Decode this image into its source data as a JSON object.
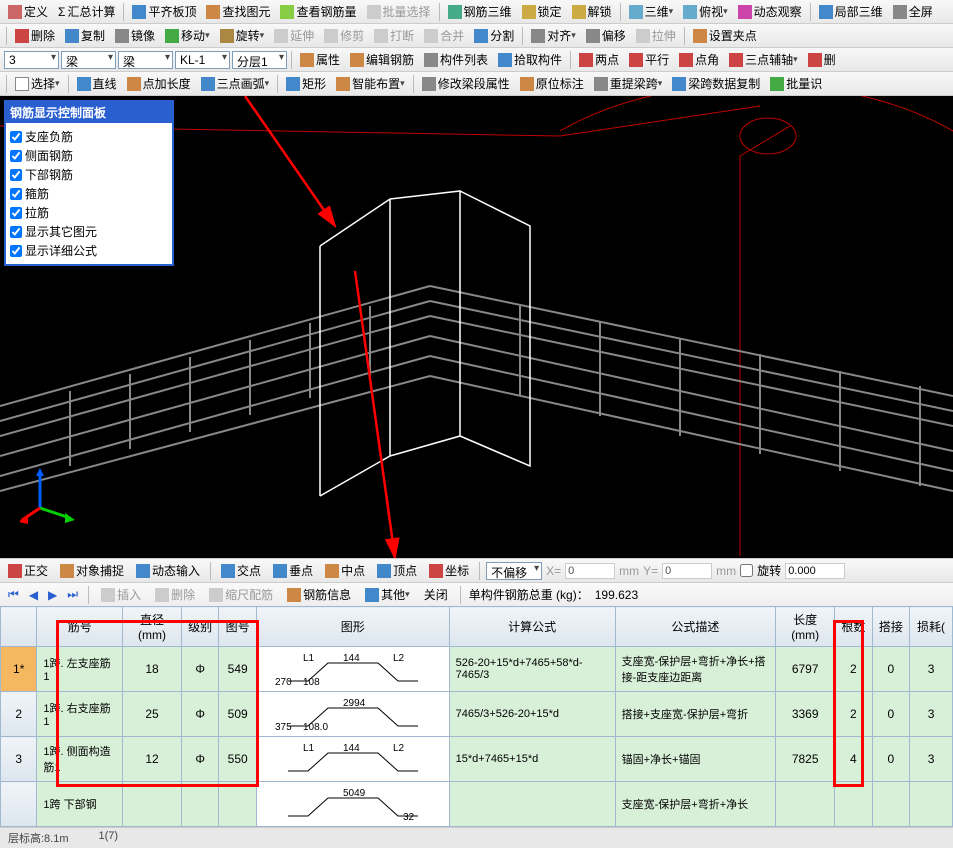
{
  "toolbars": {
    "row1": {
      "items": [
        "定义",
        "汇总计算",
        "平齐板顶",
        "查找图元",
        "查看钢筋量",
        "批量选择",
        "钢筋三维",
        "锁定",
        "解锁",
        "三维",
        "俯视",
        "动态观察",
        "局部三维",
        "全屏"
      ],
      "sigma": "Σ"
    },
    "row2": {
      "items": [
        "删除",
        "复制",
        "镜像",
        "移动",
        "旋转",
        "延伸",
        "修剪",
        "打断",
        "合并",
        "分割",
        "对齐",
        "偏移",
        "拉伸",
        "设置夹点"
      ]
    },
    "row3": {
      "dd1": "3",
      "dd2": "梁",
      "dd3": "梁",
      "dd4": "KL-1",
      "dd5": "分层1",
      "items": [
        "属性",
        "编辑钢筋",
        "构件列表",
        "拾取构件",
        "两点",
        "平行",
        "点角",
        "三点辅轴",
        "删"
      ]
    },
    "row4": {
      "items": [
        "选择",
        "直线",
        "点加长度",
        "三点画弧",
        "矩形",
        "智能布置",
        "修改梁段属性",
        "原位标注",
        "重提梁跨",
        "梁跨数据复制",
        "批量识"
      ]
    }
  },
  "panel": {
    "title": "钢筋显示控制面板",
    "items": [
      "支座负筋",
      "侧面钢筋",
      "下部钢筋",
      "箍筋",
      "拉筋",
      "显示其它图元",
      "显示详细公式"
    ]
  },
  "bottom_tb": {
    "items": [
      "正交",
      "对象捕捉",
      "动态输入",
      "交点",
      "垂点",
      "中点",
      "顶点",
      "坐标"
    ],
    "offset_label": "不偏移",
    "x_lbl": "X=",
    "y_lbl": "Y=",
    "rotate_lbl": "旋转",
    "mm1": "mm",
    "mm2": "mm",
    "x_val": "0",
    "y_val": "0",
    "rot_val": "0.000"
  },
  "nav": {
    "items": [
      "插入",
      "删除",
      "缩尺配筋",
      "钢筋信息",
      "其他",
      "关闭"
    ],
    "weight_label": "单构件钢筋总重 (kg)：",
    "weight_value": "199.623"
  },
  "table": {
    "headers": [
      "",
      "筋号",
      "直径(mm)",
      "级别",
      "图号",
      "图形",
      "计算公式",
      "公式描述",
      "长度(mm)",
      "根数",
      "搭接",
      "损耗("
    ],
    "rows": [
      {
        "idx": "1*",
        "name": "1跨. 左支座筋1",
        "dia": "18",
        "grade": "Φ",
        "code": "549",
        "shape": {
          "l1": "L1",
          "l2": "L2",
          "top": "144",
          "left": "270",
          "leftb": "108"
        },
        "formula": "526-20+15*d+7465+58*d-7465/3",
        "desc": "支座宽-保护层+弯折+净长+搭接-距支座边距离",
        "len": "6797",
        "count": "2",
        "lap": "0",
        "loss": "3"
      },
      {
        "idx": "2",
        "name": "1跨. 右支座筋1",
        "dia": "25",
        "grade": "Φ",
        "code": "509",
        "shape": {
          "top": "2994",
          "left": "375",
          "leftb": "108.0"
        },
        "formula": "7465/3+526-20+15*d",
        "desc": "搭接+支座宽-保护层+弯折",
        "len": "3369",
        "count": "2",
        "lap": "0",
        "loss": "3"
      },
      {
        "idx": "3",
        "name": "1跨. 侧面构造筋1",
        "dia": "12",
        "grade": "Φ",
        "code": "550",
        "shape": {
          "l1": "L1",
          "l2": "L2",
          "top": "144"
        },
        "formula": "15*d+7465+15*d",
        "desc": "锚固+净长+锚固",
        "len": "7825",
        "count": "4",
        "lap": "0",
        "loss": "3"
      },
      {
        "idx": "",
        "name": "1跨 下部钢",
        "dia": "",
        "grade": "",
        "code": "",
        "shape": {
          "top": "5049",
          "code": "32"
        },
        "formula": "",
        "desc": "支座宽-保护层+弯折+净长",
        "len": "",
        "count": "",
        "lap": "",
        "loss": ""
      }
    ]
  },
  "status": {
    "left": "层标高:8.1m",
    "right": "1(7)"
  },
  "colors": {
    "accent": "#2a5fd0",
    "red": "#ff0000",
    "green_cell": "#d8f0d8"
  }
}
